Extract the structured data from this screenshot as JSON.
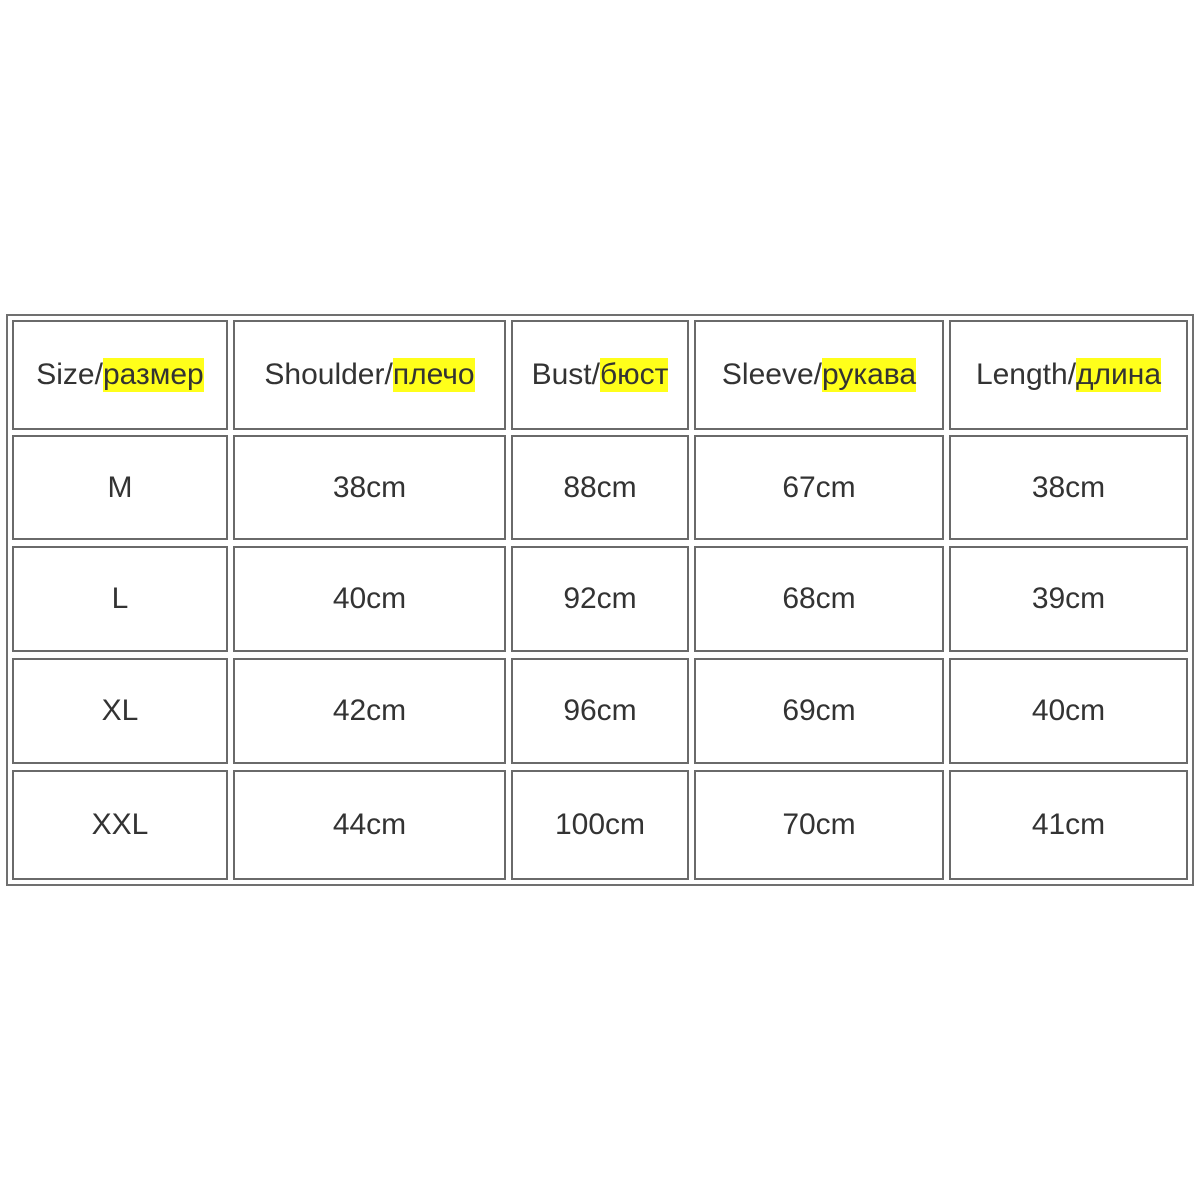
{
  "table": {
    "header": [
      {
        "text": "Size/",
        "highlight": "размер"
      },
      {
        "text": "Shoulder/",
        "highlight": "плечо"
      },
      {
        "text": "Bust/",
        "highlight": "бюст"
      },
      {
        "text": "Sleeve/",
        "highlight": "рукава"
      },
      {
        "text": "Length/",
        "highlight": "длина"
      }
    ],
    "rows": [
      [
        "M",
        "38cm",
        "88cm",
        "67cm",
        "38cm"
      ],
      [
        "L",
        "40cm",
        "92cm",
        "68cm",
        "39cm"
      ],
      [
        "XL",
        "42cm",
        "96cm",
        "69cm",
        "40cm"
      ],
      [
        "XXL",
        "44cm",
        "100cm",
        "70cm",
        "41cm"
      ]
    ]
  }
}
